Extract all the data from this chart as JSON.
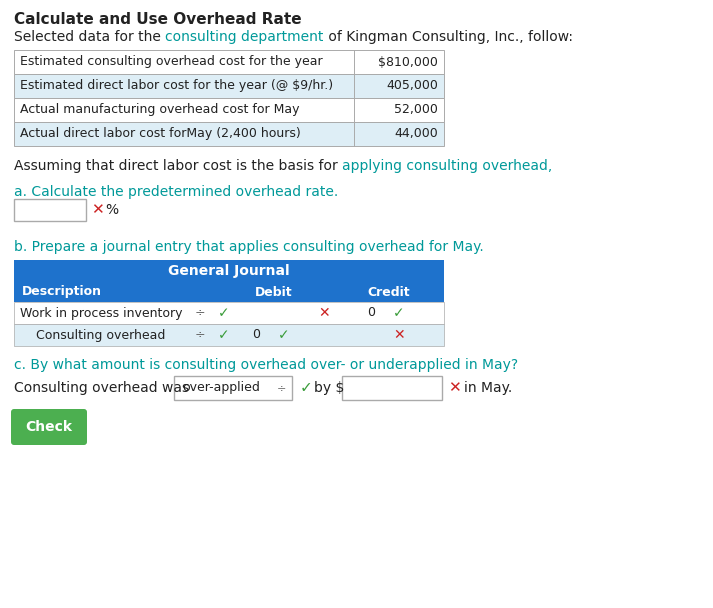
{
  "title": "Calculate and Use Overhead Rate",
  "table_rows": [
    [
      "Estimated consulting overhead cost for the year",
      "$810,000"
    ],
    [
      "Estimated direct labor cost for the year (@ $9/hr.)",
      "405,000"
    ],
    [
      "Actual manufacturing overhead cost for May",
      "52,000"
    ],
    [
      "Actual direct labor cost forMay (2,400 hours)",
      "44,000"
    ]
  ],
  "journal_title": "General Journal",
  "journal_headers": [
    "Description",
    "Debit",
    "Credit"
  ],
  "journal_row1": "Work in process inventory",
  "journal_row2": "Consulting overhead",
  "part_c2_dropdown": "over-applied",
  "check_button": "Check",
  "bg_color": "#ffffff",
  "table_border_color": "#aaaaaa",
  "row_even_bg": "#ffffff",
  "row_odd_bg": "#deeef6",
  "journal_header_bg": "#1e72cc",
  "journal_row1_bg": "#ffffff",
  "journal_row2_bg": "#deeef6",
  "green_color": "#3a9c3a",
  "red_color": "#cc2222",
  "dark_color": "#222222",
  "teal_color": "#009999",
  "check_btn_color": "#4caf50",
  "input_border": "#aaaaaa",
  "gray_color": "#666666"
}
